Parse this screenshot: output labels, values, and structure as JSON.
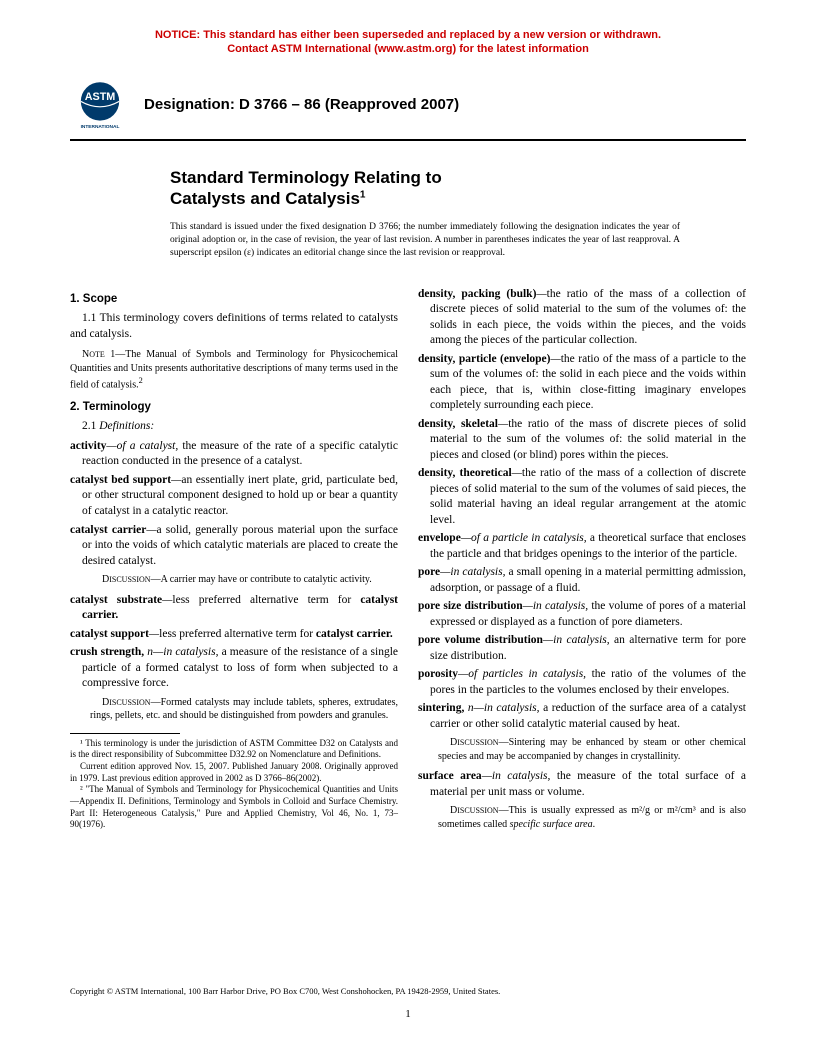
{
  "notice": {
    "line1": "NOTICE: This standard has either been superseded and replaced by a new version or withdrawn.",
    "line2": "Contact ASTM International (www.astm.org) for the latest information"
  },
  "colors": {
    "notice": "#cc0000",
    "text": "#000000",
    "bg": "#ffffff"
  },
  "designation": "Designation: D 3766 – 86 (Reapproved 2007)",
  "title_line1": "Standard Terminology Relating to",
  "title_line2": "Catalysts and Catalysis",
  "title_sup": "1",
  "issue_note": "This standard is issued under the fixed designation D 3766; the number immediately following the designation indicates the year of original adoption or, in the case of revision, the year of last revision. A number in parentheses indicates the year of last reapproval. A superscript epsilon (ε) indicates an editorial change since the last revision or reapproval.",
  "left": {
    "scope_head": "1. Scope",
    "scope_para": "1.1 This terminology covers definitions of terms related to catalysts and catalysis.",
    "note1": "NOTE 1—The Manual of Symbols and Terminology for Physicochemical Quantities and Units presents authoritative descriptions of many terms used in the field of catalysis.²",
    "term_head": "2. Terminology",
    "defs_head": "2.1 Definitions:",
    "defs": [
      {
        "term": "activity",
        "qual": "—of a catalyst, ",
        "body": "the measure of the rate of a specific catalytic reaction conducted in the presence of a catalyst."
      },
      {
        "term": "catalyst bed support",
        "qual": "—",
        "body": "an essentially inert plate, grid, particulate bed, or other structural component designed to hold up or bear a quantity of catalyst in a catalytic reactor."
      },
      {
        "term": "catalyst carrier",
        "qual": "—",
        "body": "a solid, generally porous material upon the surface or into the voids of which catalytic materials are placed to create the desired catalyst."
      }
    ],
    "disc1": "DISCUSSION—A carrier may have or contribute to catalytic activity.",
    "defs2": [
      {
        "term": "catalyst substrate",
        "qual": "—",
        "body": "less preferred alternative term for ",
        "bold_end": "catalyst carrier."
      },
      {
        "term": "catalyst support",
        "qual": "—",
        "body": "less preferred alternative term for ",
        "bold_end": "catalyst carrier."
      },
      {
        "term": "crush strength,",
        "nqual": " n—in catalysis, ",
        "body": "a measure of the resistance of a single particle of a formed catalyst to loss of form when subjected to a compressive force."
      }
    ],
    "disc2": "DISCUSSION—Formed catalysts may include tablets, spheres, extrudates, rings, pellets, etc. and should be distinguished from powders and granules.",
    "fn1": "¹ This terminology is under the jurisdiction of ASTM Committee D32 on Catalysts and is the direct responsibility of Subcommittee D32.92 on Nomenclature and Definitions.",
    "fn1b": "Current edition approved Nov. 15, 2007. Published January 2008. Originally approved in 1979. Last previous edition approved in 2002 as D 3766–86(2002).",
    "fn2": "² \"The Manual of Symbols and Terminology for Physicochemical Quantities and Units—Appendix II. Definitions, Terminology and Symbols in Colloid and Surface Chemistry. Part II: Heterogeneous Catalysis,\" Pure and Applied Chemistry, Vol 46, No. 1, 73–90(1976)."
  },
  "right": {
    "defs": [
      {
        "term": "density, packing (bulk)",
        "qual": "—",
        "body": "the ratio of the mass of a collection of discrete pieces of solid material to the sum of the volumes of: the solids in each piece, the voids within the pieces, and the voids among the pieces of the particular collection."
      },
      {
        "term": "density, particle (envelope)",
        "qual": "—",
        "body": "the ratio of the mass of a particle to the sum of the volumes of: the solid in each piece and the voids within each piece, that is, within close-fitting imaginary envelopes completely surrounding each piece."
      },
      {
        "term": "density, skeletal",
        "qual": "—",
        "body": "the ratio of the mass of discrete pieces of solid material to the sum of the volumes of: the solid material in the pieces and closed (or blind) pores within the pieces."
      },
      {
        "term": "density, theoretical",
        "qual": "—",
        "body": "the ratio of the mass of a collection of discrete pieces of solid material to the sum of the volumes of said pieces, the solid material having an ideal regular arrangement at the atomic level."
      },
      {
        "term": "envelope",
        "qual": "—of a particle in catalysis, ",
        "body": "a theoretical surface that encloses the particle and that bridges openings to the interior of the particle."
      },
      {
        "term": "pore",
        "qual": "—in catalysis, ",
        "body": "a small opening in a material permitting admission, adsorption, or passage of a fluid."
      },
      {
        "term": "pore size distribution",
        "qual": "—in catalysis, ",
        "body": "the volume of pores of a material expressed or displayed as a function of pore diameters."
      },
      {
        "term": "pore volume distribution",
        "qual": "—in catalysis, ",
        "body": "an alternative term for pore size distribution."
      },
      {
        "term": "porosity",
        "qual": "—of particles in catalysis, ",
        "body": "the ratio of the volumes of the pores in the particles to the volumes enclosed by their envelopes."
      },
      {
        "term": "sintering,",
        "nqual": " n—in catalysis, ",
        "body": "a reduction of the surface area of a catalyst carrier or other solid catalytic material caused by heat."
      }
    ],
    "disc1": "DISCUSSION—Sintering may be enhanced by steam or other chemical species and may be accompanied by changes in crystallinity.",
    "defs2": [
      {
        "term": "surface area",
        "qual": "—in catalysis, ",
        "body": "the measure of the total surface of a material per unit mass or volume."
      }
    ],
    "disc2": "DISCUSSION—This is usually expressed as m²/g or m²/cm³ and is also sometimes called specific surface area.",
    "disc2_italic": "specific surface area"
  },
  "copyright": "Copyright © ASTM International, 100 Barr Harbor Drive, PO Box C700, West Conshohocken, PA 19428-2959, United States.",
  "pagenum": "1"
}
